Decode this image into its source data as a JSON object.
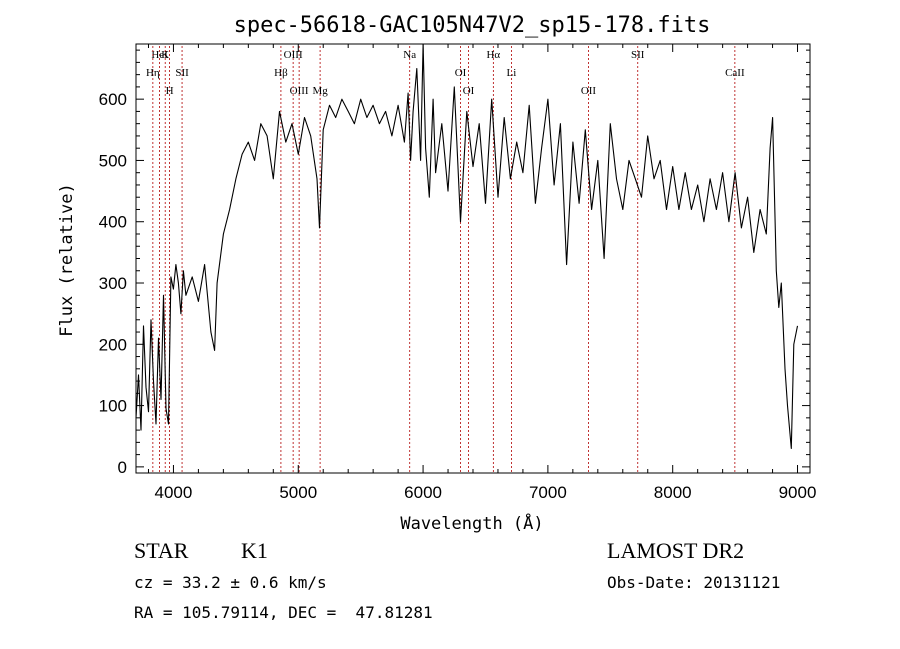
{
  "chart_data": {
    "type": "line",
    "title": "spec-56618-GAC105N47V2_sp15-178.fits",
    "xlabel": "Wavelength (Å)",
    "ylabel": "Flux (relative)",
    "xlim": [
      3700,
      9100
    ],
    "ylim": [
      -10,
      690
    ],
    "x_ticks": [
      4000,
      5000,
      6000,
      7000,
      8000,
      9000
    ],
    "x_tick_labels": [
      "4000",
      "5000",
      "6000",
      "7000",
      "8000",
      "9000"
    ],
    "y_ticks": [
      0,
      100,
      200,
      300,
      400,
      500,
      600
    ],
    "y_tick_labels": [
      "0",
      "100",
      "200",
      "300",
      "400",
      "500",
      "600"
    ],
    "grid": false,
    "series": [
      {
        "color": "#000000",
        "x": [
          3700,
          3720,
          3740,
          3760,
          3780,
          3800,
          3820,
          3840,
          3860,
          3880,
          3900,
          3920,
          3940,
          3960,
          3980,
          4000,
          4020,
          4040,
          4060,
          4080,
          4100,
          4150,
          4200,
          4250,
          4300,
          4330,
          4350,
          4400,
          4450,
          4500,
          4550,
          4600,
          4650,
          4700,
          4750,
          4800,
          4850,
          4900,
          4950,
          5000,
          5050,
          5100,
          5150,
          5170,
          5200,
          5250,
          5300,
          5350,
          5400,
          5450,
          5500,
          5550,
          5600,
          5650,
          5700,
          5750,
          5800,
          5850,
          5880,
          5900,
          5920,
          5950,
          5980,
          6000,
          6020,
          6050,
          6080,
          6100,
          6150,
          6200,
          6250,
          6300,
          6350,
          6400,
          6450,
          6500,
          6550,
          6600,
          6650,
          6700,
          6750,
          6800,
          6850,
          6900,
          6950,
          7000,
          7050,
          7100,
          7150,
          7200,
          7250,
          7300,
          7350,
          7400,
          7450,
          7500,
          7550,
          7600,
          7650,
          7700,
          7750,
          7800,
          7850,
          7900,
          7950,
          8000,
          8050,
          8100,
          8150,
          8200,
          8250,
          8300,
          8350,
          8400,
          8450,
          8500,
          8550,
          8600,
          8650,
          8700,
          8750,
          8780,
          8800,
          8830,
          8850,
          8870,
          8900,
          8920,
          8950,
          8970,
          9000
        ],
        "y": [
          80,
          150,
          60,
          230,
          130,
          90,
          240,
          140,
          70,
          210,
          110,
          280,
          95,
          70,
          310,
          290,
          330,
          300,
          250,
          320,
          280,
          310,
          270,
          330,
          220,
          190,
          300,
          380,
          420,
          470,
          510,
          530,
          500,
          560,
          540,
          470,
          580,
          530,
          560,
          510,
          570,
          540,
          470,
          390,
          550,
          590,
          570,
          600,
          580,
          560,
          600,
          570,
          590,
          560,
          580,
          540,
          590,
          530,
          610,
          500,
          580,
          650,
          500,
          690,
          520,
          440,
          600,
          480,
          560,
          450,
          620,
          400,
          580,
          490,
          560,
          430,
          600,
          440,
          570,
          470,
          530,
          480,
          590,
          430,
          520,
          600,
          460,
          560,
          330,
          530,
          430,
          550,
          420,
          500,
          340,
          560,
          470,
          420,
          500,
          470,
          440,
          540,
          470,
          500,
          420,
          490,
          420,
          480,
          420,
          460,
          400,
          470,
          420,
          480,
          400,
          480,
          390,
          440,
          350,
          420,
          380,
          520,
          570,
          320,
          260,
          300,
          160,
          100,
          30,
          200,
          230
        ]
      }
    ],
    "line_ids": [
      {
        "label": "HeI",
        "x": 3889
      },
      {
        "label": "Hη",
        "x": 3835
      },
      {
        "label": "H",
        "x": 3969
      },
      {
        "label": "K",
        "x": 3934
      },
      {
        "label": "SII",
        "x": 4069
      },
      {
        "label": "OIII",
        "x": 5007
      },
      {
        "label": "OIII",
        "x": 4959
      },
      {
        "label": "Hβ",
        "x": 4861
      },
      {
        "label": "Mg",
        "x": 5175
      },
      {
        "label": "Na",
        "x": 5893
      },
      {
        "label": "OI",
        "x": 6300
      },
      {
        "label": "OI",
        "x": 6364
      },
      {
        "label": "Hα",
        "x": 6563
      },
      {
        "label": "Li",
        "x": 6708
      },
      {
        "label": "OII",
        "x": 7325
      },
      {
        "label": "SII",
        "x": 7720
      },
      {
        "label": "CaII",
        "x": 8498
      }
    ]
  },
  "footer": {
    "object_class": "STAR",
    "subclass": "K1",
    "velocity": "cz = 33.2 ± 0.6 km/s",
    "coordinates": "RA = 105.79114, DEC =  47.81281",
    "survey": "LAMOST DR2",
    "obs_date": "Obs-Date: 20131121"
  }
}
